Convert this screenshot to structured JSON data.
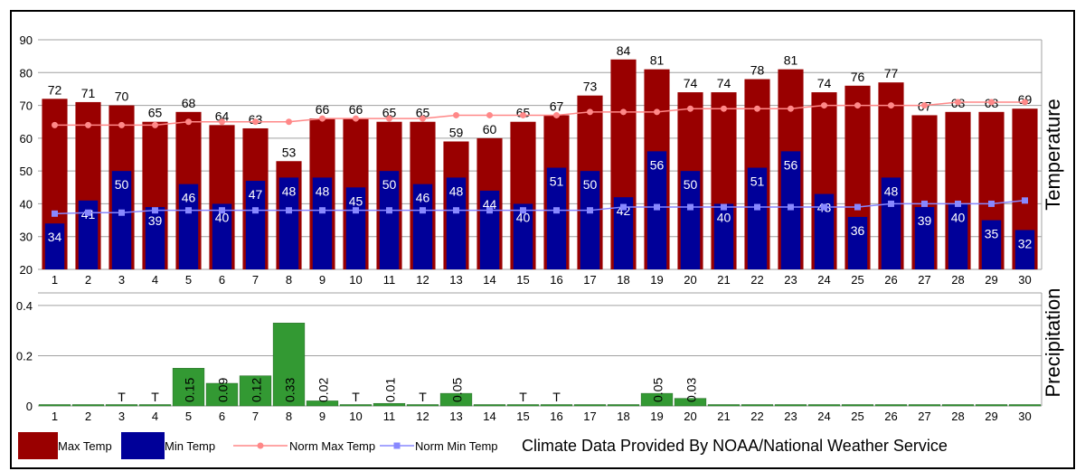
{
  "chart_data": {
    "type": "bar",
    "categories": [
      "1",
      "2",
      "3",
      "4",
      "5",
      "6",
      "7",
      "8",
      "9",
      "10",
      "11",
      "12",
      "13",
      "14",
      "15",
      "16",
      "17",
      "18",
      "19",
      "20",
      "21",
      "22",
      "23",
      "24",
      "25",
      "26",
      "27",
      "28",
      "29",
      "30"
    ],
    "temperature": {
      "ylabel": "Temperature",
      "ylim": [
        20,
        90
      ],
      "yticks": [
        "20",
        "30",
        "40",
        "50",
        "60",
        "70",
        "80",
        "90"
      ],
      "max_temp": [
        72,
        71,
        70,
        65,
        68,
        64,
        63,
        53,
        66,
        66,
        65,
        65,
        59,
        60,
        65,
        67,
        73,
        84,
        81,
        74,
        74,
        78,
        81,
        74,
        76,
        77,
        67,
        68,
        68,
        69
      ],
      "min_temp": [
        34,
        41,
        50,
        39,
        46,
        40,
        47,
        48,
        48,
        45,
        50,
        46,
        48,
        44,
        40,
        51,
        50,
        42,
        56,
        50,
        40,
        51,
        56,
        43,
        36,
        48,
        39,
        40,
        35,
        32
      ],
      "norm_max": [
        64,
        64,
        64,
        64,
        65,
        65,
        65,
        65,
        66,
        66,
        66,
        66,
        67,
        67,
        67,
        67,
        68,
        68,
        68,
        69,
        69,
        69,
        69,
        70,
        70,
        70,
        70,
        71,
        71,
        71
      ],
      "norm_min": [
        37,
        37.3,
        37.3,
        38,
        38,
        38,
        38,
        38,
        38,
        38,
        38,
        38,
        38,
        38,
        38,
        38,
        38,
        39,
        39,
        39,
        39,
        39,
        39,
        39,
        39,
        40,
        40,
        40,
        40,
        41
      ]
    },
    "precipitation": {
      "ylabel": "Precipitation",
      "ylim": [
        0,
        0.45
      ],
      "yticks": [
        "0",
        "0.2",
        "0.4"
      ],
      "values": [
        0,
        0,
        0,
        0,
        0.15,
        0.09,
        0.12,
        0.33,
        0.02,
        0,
        0.01,
        0,
        0.05,
        0,
        0,
        0,
        0,
        0,
        0.05,
        0.03,
        0,
        0,
        0,
        0,
        0,
        0,
        0,
        0,
        0,
        0
      ],
      "labels": [
        "",
        "",
        "T",
        "T",
        "0.15",
        "0.09",
        "0.12",
        "0.33",
        "0.02",
        "T",
        "0.01",
        "T",
        "0.05",
        "",
        "T",
        "T",
        "",
        "",
        "0.05",
        "0.03",
        "",
        "",
        "",
        "",
        "",
        "",
        "",
        "",
        "",
        ""
      ]
    },
    "legend": [
      {
        "name": "Max Temp",
        "color": "#990000",
        "kind": "box"
      },
      {
        "name": "Min Temp",
        "color": "#000099",
        "kind": "box"
      },
      {
        "name": "Norm Max Temp",
        "color": "#ff8888",
        "kind": "line"
      },
      {
        "name": "Norm Min Temp",
        "color": "#8888ff",
        "kind": "line"
      }
    ],
    "credit": "Climate Data Provided By NOAA/National Weather Service",
    "colors": {
      "max": "#990000",
      "min": "#000099",
      "normMax": "#ff8888",
      "normMin": "#8888ff",
      "precip": "#339933",
      "precipStroke": "#226622",
      "grid": "#a0a0a0"
    }
  }
}
